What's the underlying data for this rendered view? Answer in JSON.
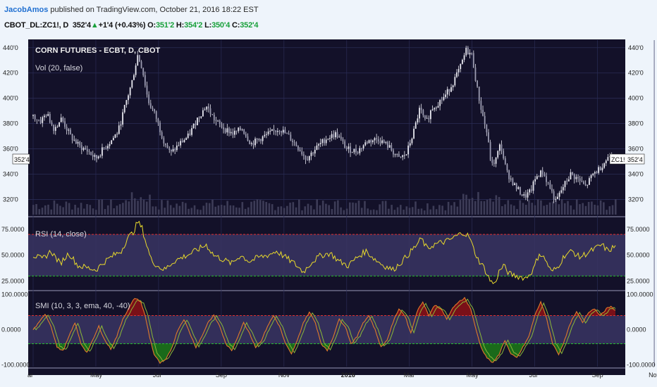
{
  "header": {
    "author": "JacobAmos",
    "published": "published on TradingView.com, October 21, 2016 18:22 EST",
    "symbol": "CBOT_DL:ZC1!, D",
    "last": "352'4",
    "up_arrow": "▲",
    "change": "+1'4 (+0.43%)",
    "open_label": "O:",
    "open": "351'2",
    "high_label": "H:",
    "high": "354'2",
    "low_label": "L:",
    "low": "350'4",
    "close_label": "C:",
    "close": "352'4"
  },
  "colors": {
    "background": "#131129",
    "candle": "#e8e8f0",
    "volume": "#3d3c57",
    "rsi_line": "#e8d92c",
    "smi_line": "#e07a2a",
    "overbought": "#e03030",
    "oversold": "#27c22c",
    "band_fill": "#3a3563",
    "smi_up_fill": "#7a1018",
    "smi_down_fill": "#1a6a1a",
    "grid": "#2a2c55"
  },
  "chart_data": [
    {
      "type": "candlestick",
      "title": "CORN FUTURES - ECBT, D, CBOT",
      "subtitle": "Vol (20, false)",
      "y_ticks": [
        "440'0",
        "420'0",
        "400'0",
        "380'0",
        "360'0",
        "340'0",
        "320'0"
      ],
      "y_tick_values": [
        440,
        420,
        400,
        380,
        360,
        340,
        320
      ],
      "ylim": [
        308,
        446
      ],
      "last_price_label": "352'4",
      "last_price": 352.5,
      "symbol_tag": "ZC1!",
      "x_ticks": [
        "ar",
        "May",
        "Jul",
        "Sep",
        "Nov",
        "2016",
        "Mar",
        "May",
        "Jul",
        "Sep",
        "Nov"
      ],
      "close_anchors": [
        {
          "x": 0,
          "y": 386
        },
        {
          "x": 10,
          "y": 382
        },
        {
          "x": 18,
          "y": 388
        },
        {
          "x": 28,
          "y": 376
        },
        {
          "x": 38,
          "y": 384
        },
        {
          "x": 50,
          "y": 370
        },
        {
          "x": 62,
          "y": 362
        },
        {
          "x": 74,
          "y": 358
        },
        {
          "x": 84,
          "y": 352
        },
        {
          "x": 94,
          "y": 360
        },
        {
          "x": 104,
          "y": 366
        },
        {
          "x": 114,
          "y": 374
        },
        {
          "x": 124,
          "y": 396
        },
        {
          "x": 132,
          "y": 412
        },
        {
          "x": 140,
          "y": 434
        },
        {
          "x": 146,
          "y": 424
        },
        {
          "x": 154,
          "y": 398
        },
        {
          "x": 164,
          "y": 386
        },
        {
          "x": 174,
          "y": 368
        },
        {
          "x": 184,
          "y": 356
        },
        {
          "x": 196,
          "y": 364
        },
        {
          "x": 208,
          "y": 370
        },
        {
          "x": 220,
          "y": 384
        },
        {
          "x": 232,
          "y": 394
        },
        {
          "x": 244,
          "y": 382
        },
        {
          "x": 256,
          "y": 376
        },
        {
          "x": 268,
          "y": 372
        },
        {
          "x": 280,
          "y": 376
        },
        {
          "x": 292,
          "y": 364
        },
        {
          "x": 304,
          "y": 368
        },
        {
          "x": 316,
          "y": 372
        },
        {
          "x": 330,
          "y": 376
        },
        {
          "x": 342,
          "y": 370
        },
        {
          "x": 354,
          "y": 362
        },
        {
          "x": 366,
          "y": 352
        },
        {
          "x": 378,
          "y": 360
        },
        {
          "x": 392,
          "y": 368
        },
        {
          "x": 406,
          "y": 372
        },
        {
          "x": 420,
          "y": 360
        },
        {
          "x": 434,
          "y": 358
        },
        {
          "x": 448,
          "y": 366
        },
        {
          "x": 462,
          "y": 368
        },
        {
          "x": 476,
          "y": 362
        },
        {
          "x": 490,
          "y": 352
        },
        {
          "x": 500,
          "y": 356
        },
        {
          "x": 510,
          "y": 374
        },
        {
          "x": 518,
          "y": 392
        },
        {
          "x": 526,
          "y": 380
        },
        {
          "x": 534,
          "y": 392
        },
        {
          "x": 542,
          "y": 396
        },
        {
          "x": 552,
          "y": 402
        },
        {
          "x": 562,
          "y": 412
        },
        {
          "x": 572,
          "y": 424
        },
        {
          "x": 580,
          "y": 438
        },
        {
          "x": 588,
          "y": 434
        },
        {
          "x": 594,
          "y": 410
        },
        {
          "x": 600,
          "y": 392
        },
        {
          "x": 608,
          "y": 372
        },
        {
          "x": 614,
          "y": 346
        },
        {
          "x": 620,
          "y": 352
        },
        {
          "x": 626,
          "y": 364
        },
        {
          "x": 634,
          "y": 342
        },
        {
          "x": 646,
          "y": 330
        },
        {
          "x": 658,
          "y": 322
        },
        {
          "x": 666,
          "y": 326
        },
        {
          "x": 674,
          "y": 338
        },
        {
          "x": 682,
          "y": 342
        },
        {
          "x": 692,
          "y": 330
        },
        {
          "x": 700,
          "y": 318
        },
        {
          "x": 710,
          "y": 330
        },
        {
          "x": 720,
          "y": 340
        },
        {
          "x": 730,
          "y": 336
        },
        {
          "x": 740,
          "y": 330
        },
        {
          "x": 750,
          "y": 340
        },
        {
          "x": 758,
          "y": 344
        },
        {
          "x": 766,
          "y": 350
        },
        {
          "x": 774,
          "y": 356
        },
        {
          "x": 780,
          "y": 352
        }
      ]
    },
    {
      "type": "line",
      "title": "RSI (14, close)",
      "y_ticks": [
        "75.0000",
        "50.0000",
        "25.0000"
      ],
      "y_tick_values": [
        75,
        50,
        25
      ],
      "ylim": [
        18,
        85
      ],
      "overbought": 70,
      "oversold": 30,
      "anchors": [
        {
          "x": 0,
          "y": 50
        },
        {
          "x": 12,
          "y": 46
        },
        {
          "x": 24,
          "y": 54
        },
        {
          "x": 36,
          "y": 42
        },
        {
          "x": 48,
          "y": 52
        },
        {
          "x": 60,
          "y": 40
        },
        {
          "x": 72,
          "y": 38
        },
        {
          "x": 84,
          "y": 36
        },
        {
          "x": 96,
          "y": 44
        },
        {
          "x": 108,
          "y": 50
        },
        {
          "x": 118,
          "y": 54
        },
        {
          "x": 126,
          "y": 66
        },
        {
          "x": 134,
          "y": 72
        },
        {
          "x": 140,
          "y": 82
        },
        {
          "x": 146,
          "y": 76
        },
        {
          "x": 152,
          "y": 60
        },
        {
          "x": 158,
          "y": 46
        },
        {
          "x": 166,
          "y": 40
        },
        {
          "x": 176,
          "y": 36
        },
        {
          "x": 188,
          "y": 44
        },
        {
          "x": 200,
          "y": 48
        },
        {
          "x": 212,
          "y": 52
        },
        {
          "x": 222,
          "y": 56
        },
        {
          "x": 232,
          "y": 60
        },
        {
          "x": 242,
          "y": 50
        },
        {
          "x": 254,
          "y": 46
        },
        {
          "x": 266,
          "y": 42
        },
        {
          "x": 278,
          "y": 50
        },
        {
          "x": 290,
          "y": 44
        },
        {
          "x": 302,
          "y": 48
        },
        {
          "x": 314,
          "y": 50
        },
        {
          "x": 326,
          "y": 54
        },
        {
          "x": 338,
          "y": 48
        },
        {
          "x": 350,
          "y": 42
        },
        {
          "x": 362,
          "y": 34
        },
        {
          "x": 374,
          "y": 44
        },
        {
          "x": 386,
          "y": 50
        },
        {
          "x": 398,
          "y": 52
        },
        {
          "x": 410,
          "y": 44
        },
        {
          "x": 422,
          "y": 40
        },
        {
          "x": 434,
          "y": 48
        },
        {
          "x": 446,
          "y": 54
        },
        {
          "x": 458,
          "y": 46
        },
        {
          "x": 470,
          "y": 40
        },
        {
          "x": 482,
          "y": 36
        },
        {
          "x": 494,
          "y": 44
        },
        {
          "x": 504,
          "y": 52
        },
        {
          "x": 514,
          "y": 60
        },
        {
          "x": 520,
          "y": 66
        },
        {
          "x": 528,
          "y": 56
        },
        {
          "x": 536,
          "y": 60
        },
        {
          "x": 546,
          "y": 62
        },
        {
          "x": 556,
          "y": 64
        },
        {
          "x": 566,
          "y": 68
        },
        {
          "x": 576,
          "y": 72
        },
        {
          "x": 584,
          "y": 68
        },
        {
          "x": 590,
          "y": 56
        },
        {
          "x": 596,
          "y": 46
        },
        {
          "x": 604,
          "y": 38
        },
        {
          "x": 612,
          "y": 26
        },
        {
          "x": 618,
          "y": 22
        },
        {
          "x": 624,
          "y": 34
        },
        {
          "x": 630,
          "y": 40
        },
        {
          "x": 638,
          "y": 32
        },
        {
          "x": 648,
          "y": 30
        },
        {
          "x": 660,
          "y": 28
        },
        {
          "x": 670,
          "y": 36
        },
        {
          "x": 678,
          "y": 52
        },
        {
          "x": 686,
          "y": 46
        },
        {
          "x": 694,
          "y": 34
        },
        {
          "x": 702,
          "y": 38
        },
        {
          "x": 712,
          "y": 50
        },
        {
          "x": 722,
          "y": 54
        },
        {
          "x": 732,
          "y": 48
        },
        {
          "x": 742,
          "y": 52
        },
        {
          "x": 752,
          "y": 56
        },
        {
          "x": 762,
          "y": 60
        },
        {
          "x": 770,
          "y": 54
        },
        {
          "x": 778,
          "y": 58
        }
      ]
    },
    {
      "type": "area",
      "title": "SMI (10, 3, 3, ema, 40, -40)",
      "y_ticks": [
        "100.0000",
        "0.0000",
        "-100.0000"
      ],
      "y_tick_values": [
        100,
        0,
        -100
      ],
      "ylim": [
        -105,
        105
      ],
      "upper": 40,
      "lower": -40,
      "anchors": [
        {
          "x": 0,
          "y": 0
        },
        {
          "x": 8,
          "y": 20
        },
        {
          "x": 16,
          "y": 45
        },
        {
          "x": 24,
          "y": 10
        },
        {
          "x": 32,
          "y": -50
        },
        {
          "x": 40,
          "y": -60
        },
        {
          "x": 48,
          "y": -20
        },
        {
          "x": 56,
          "y": 20
        },
        {
          "x": 64,
          "y": -40
        },
        {
          "x": 72,
          "y": -65
        },
        {
          "x": 80,
          "y": -30
        },
        {
          "x": 88,
          "y": 10
        },
        {
          "x": 96,
          "y": -30
        },
        {
          "x": 104,
          "y": -55
        },
        {
          "x": 112,
          "y": -20
        },
        {
          "x": 120,
          "y": 30
        },
        {
          "x": 128,
          "y": 60
        },
        {
          "x": 136,
          "y": 90
        },
        {
          "x": 144,
          "y": 80
        },
        {
          "x": 150,
          "y": 40
        },
        {
          "x": 156,
          "y": -20
        },
        {
          "x": 162,
          "y": -70
        },
        {
          "x": 170,
          "y": -95
        },
        {
          "x": 178,
          "y": -85
        },
        {
          "x": 186,
          "y": -50
        },
        {
          "x": 194,
          "y": 0
        },
        {
          "x": 202,
          "y": 30
        },
        {
          "x": 210,
          "y": -10
        },
        {
          "x": 218,
          "y": -50
        },
        {
          "x": 226,
          "y": -20
        },
        {
          "x": 234,
          "y": 20
        },
        {
          "x": 242,
          "y": 40
        },
        {
          "x": 250,
          "y": 10
        },
        {
          "x": 258,
          "y": -40
        },
        {
          "x": 266,
          "y": -60
        },
        {
          "x": 274,
          "y": -20
        },
        {
          "x": 282,
          "y": 20
        },
        {
          "x": 290,
          "y": -10
        },
        {
          "x": 298,
          "y": -50
        },
        {
          "x": 306,
          "y": -30
        },
        {
          "x": 314,
          "y": 10
        },
        {
          "x": 322,
          "y": 40
        },
        {
          "x": 330,
          "y": 10
        },
        {
          "x": 338,
          "y": -40
        },
        {
          "x": 346,
          "y": -70
        },
        {
          "x": 354,
          "y": -30
        },
        {
          "x": 362,
          "y": 20
        },
        {
          "x": 370,
          "y": 50
        },
        {
          "x": 378,
          "y": 20
        },
        {
          "x": 386,
          "y": -40
        },
        {
          "x": 394,
          "y": -60
        },
        {
          "x": 402,
          "y": -20
        },
        {
          "x": 410,
          "y": 30
        },
        {
          "x": 418,
          "y": 10
        },
        {
          "x": 426,
          "y": -40
        },
        {
          "x": 434,
          "y": -20
        },
        {
          "x": 442,
          "y": 20
        },
        {
          "x": 450,
          "y": 40
        },
        {
          "x": 458,
          "y": 0
        },
        {
          "x": 466,
          "y": -50
        },
        {
          "x": 474,
          "y": -30
        },
        {
          "x": 482,
          "y": 20
        },
        {
          "x": 490,
          "y": 60
        },
        {
          "x": 498,
          "y": 40
        },
        {
          "x": 506,
          "y": -10
        },
        {
          "x": 514,
          "y": 50
        },
        {
          "x": 522,
          "y": 80
        },
        {
          "x": 530,
          "y": 40
        },
        {
          "x": 538,
          "y": 70
        },
        {
          "x": 546,
          "y": 60
        },
        {
          "x": 554,
          "y": 30
        },
        {
          "x": 562,
          "y": 60
        },
        {
          "x": 570,
          "y": 80
        },
        {
          "x": 578,
          "y": 90
        },
        {
          "x": 586,
          "y": 60
        },
        {
          "x": 592,
          "y": 10
        },
        {
          "x": 600,
          "y": -50
        },
        {
          "x": 608,
          "y": -80
        },
        {
          "x": 616,
          "y": -95
        },
        {
          "x": 624,
          "y": -70
        },
        {
          "x": 632,
          "y": -30
        },
        {
          "x": 640,
          "y": -70
        },
        {
          "x": 648,
          "y": -80
        },
        {
          "x": 656,
          "y": -50
        },
        {
          "x": 664,
          "y": -20
        },
        {
          "x": 672,
          "y": 40
        },
        {
          "x": 680,
          "y": 80
        },
        {
          "x": 688,
          "y": 30
        },
        {
          "x": 696,
          "y": -40
        },
        {
          "x": 704,
          "y": -70
        },
        {
          "x": 712,
          "y": -30
        },
        {
          "x": 720,
          "y": 20
        },
        {
          "x": 728,
          "y": 50
        },
        {
          "x": 736,
          "y": 20
        },
        {
          "x": 744,
          "y": 50
        },
        {
          "x": 752,
          "y": 60
        },
        {
          "x": 760,
          "y": 40
        },
        {
          "x": 768,
          "y": 60
        },
        {
          "x": 774,
          "y": 65
        },
        {
          "x": 780,
          "y": 55
        }
      ]
    }
  ]
}
